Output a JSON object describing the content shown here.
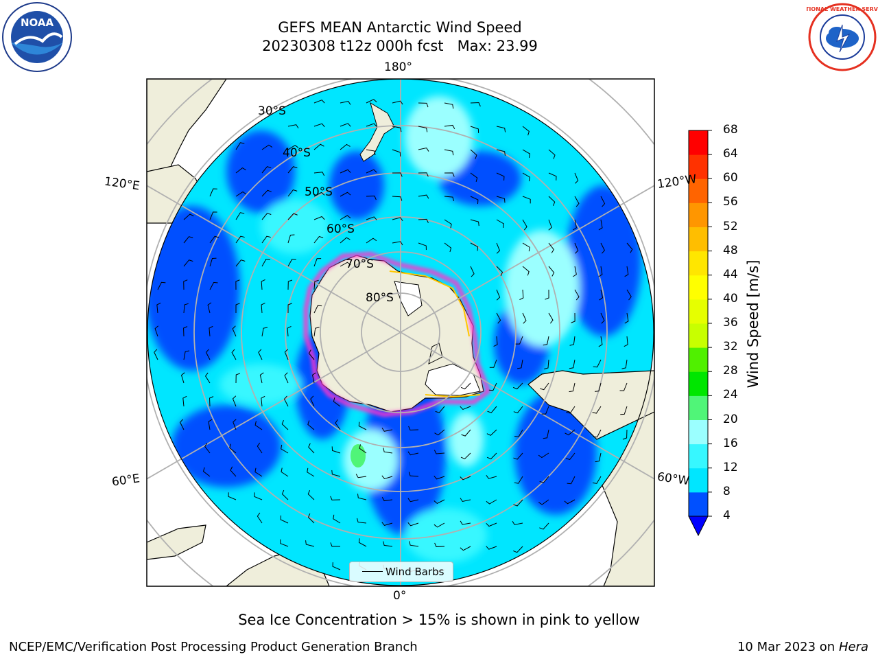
{
  "title": {
    "line1": "GEFS MEAN Antarctic Wind Speed",
    "line2": "20230308 t12z 000h fcst   Max: 23.99"
  },
  "map": {
    "meridian_labels": {
      "top": "180°",
      "bottom": "0°",
      "left_upper": "120°E",
      "left_lower": "60°E",
      "right_upper": "120°W",
      "right_lower": "60°W"
    },
    "parallel_labels": [
      "30°S",
      "40°S",
      "50°S",
      "60°S",
      "70°S",
      "80°S"
    ],
    "legend_label": "Wind Barbs"
  },
  "colorbar": {
    "label": "Wind Speed [m/s]",
    "ticks": [
      "4",
      "8",
      "12",
      "16",
      "20",
      "24",
      "28",
      "32",
      "36",
      "40",
      "44",
      "48",
      "52",
      "56",
      "60",
      "64",
      "68"
    ],
    "colors": [
      "#0050ff",
      "#00e6ff",
      "#37f7ff",
      "#9bffff",
      "#50f578",
      "#00e600",
      "#50f000",
      "#c8ff00",
      "#e6ff00",
      "#ffff00",
      "#ffe600",
      "#ffbe00",
      "#ff9600",
      "#ff6400",
      "#ff3200",
      "#ff0000"
    ],
    "extend_color": "#0000ff"
  },
  "caption": "Sea Ice Concentration > 15% is shown in pink to yellow",
  "footer": {
    "left": "NCEP/EMC/Verification Post Processing Product Generation Branch",
    "right_date": "10 Mar 2023 on",
    "right_host": "Hera"
  },
  "logos": {
    "left": "NOAA",
    "right": "NATIONAL WEATHER SERVICE"
  },
  "palette": {
    "land": "#efeedb",
    "ocean_blue": "#0050ff",
    "ocean_cyan": "#00e6ff",
    "ocean_light": "#9bffff",
    "ice_pink": "#ff33cc",
    "ice_yellow": "#ffc800"
  }
}
